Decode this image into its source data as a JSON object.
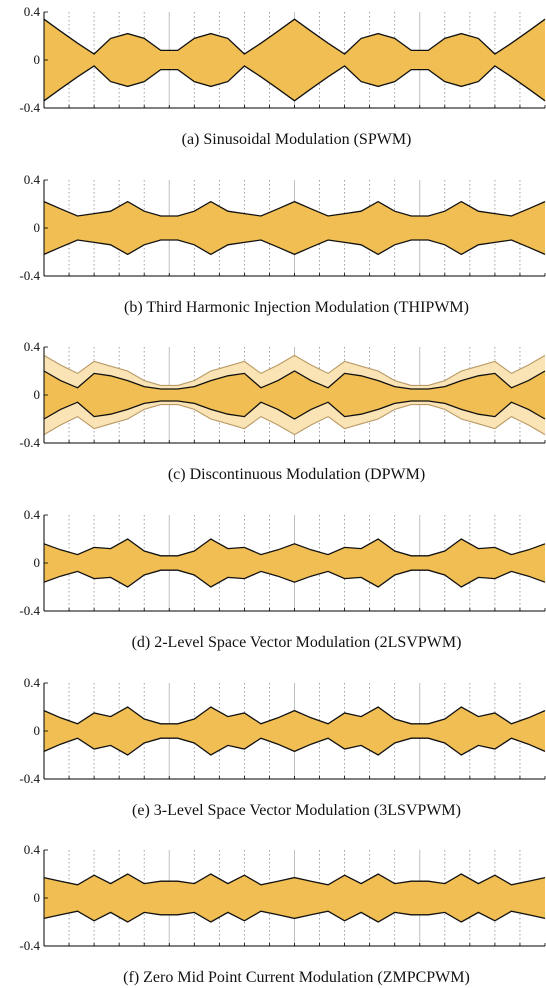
{
  "colors": {
    "fill": "#f0be52",
    "fill_light": "#fae3b4",
    "outline": "#111111",
    "outline_light": "#b99a66",
    "major_grid": "#bfbfbf",
    "minor_grid": "#8c8c8c"
  },
  "chart_data": [
    {
      "type": "area",
      "caption": "(a) Sinusoidal Modulation (SPWM)",
      "ylim": [
        -0.4,
        0.4
      ],
      "yticks": [
        "0.4",
        "0",
        "-0.4"
      ],
      "xlim": [
        0,
        1
      ],
      "grid": true,
      "series": [
        {
          "style": "main",
          "x": [
            0,
            0.033,
            0.067,
            0.1,
            0.133,
            0.167,
            0.2,
            0.233,
            0.267,
            0.3,
            0.333,
            0.367,
            0.4,
            0.433,
            0.467,
            0.5,
            0.533,
            0.567,
            0.6,
            0.633,
            0.667,
            0.7,
            0.733,
            0.767,
            0.8,
            0.833,
            0.867,
            0.9,
            0.933,
            0.967,
            1.0
          ],
          "upper": [
            0.34,
            0.24,
            0.14,
            0.05,
            0.18,
            0.22,
            0.18,
            0.08,
            0.08,
            0.18,
            0.22,
            0.18,
            0.05,
            0.14,
            0.24,
            0.34,
            0.24,
            0.14,
            0.05,
            0.18,
            0.22,
            0.18,
            0.08,
            0.08,
            0.18,
            0.22,
            0.18,
            0.05,
            0.14,
            0.24,
            0.34
          ],
          "lower": [
            -0.34,
            -0.24,
            -0.14,
            -0.05,
            -0.18,
            -0.22,
            -0.18,
            -0.08,
            -0.08,
            -0.18,
            -0.22,
            -0.18,
            -0.05,
            -0.14,
            -0.24,
            -0.34,
            -0.24,
            -0.14,
            -0.05,
            -0.18,
            -0.22,
            -0.18,
            -0.08,
            -0.08,
            -0.18,
            -0.22,
            -0.18,
            -0.05,
            -0.14,
            -0.24,
            -0.34
          ]
        }
      ]
    },
    {
      "type": "area",
      "caption": "(b) Third Harmonic Injection Modulation (THIPWM)",
      "ylim": [
        -0.4,
        0.4
      ],
      "yticks": [
        "0.4",
        "0",
        "-0.4"
      ],
      "xlim": [
        0,
        1
      ],
      "grid": true,
      "series": [
        {
          "style": "main",
          "x": [
            0,
            0.033,
            0.067,
            0.1,
            0.133,
            0.167,
            0.2,
            0.233,
            0.267,
            0.3,
            0.333,
            0.367,
            0.4,
            0.433,
            0.467,
            0.5,
            0.533,
            0.567,
            0.6,
            0.633,
            0.667,
            0.7,
            0.733,
            0.767,
            0.8,
            0.833,
            0.867,
            0.9,
            0.933,
            0.967,
            1.0
          ],
          "upper": [
            0.22,
            0.16,
            0.1,
            0.12,
            0.14,
            0.22,
            0.14,
            0.1,
            0.1,
            0.14,
            0.22,
            0.14,
            0.12,
            0.1,
            0.16,
            0.22,
            0.16,
            0.1,
            0.12,
            0.14,
            0.22,
            0.14,
            0.1,
            0.1,
            0.14,
            0.22,
            0.14,
            0.12,
            0.1,
            0.16,
            0.22
          ],
          "lower": [
            -0.22,
            -0.16,
            -0.1,
            -0.12,
            -0.14,
            -0.22,
            -0.14,
            -0.1,
            -0.1,
            -0.14,
            -0.22,
            -0.14,
            -0.12,
            -0.1,
            -0.16,
            -0.22,
            -0.16,
            -0.1,
            -0.12,
            -0.14,
            -0.22,
            -0.14,
            -0.1,
            -0.1,
            -0.14,
            -0.22,
            -0.14,
            -0.12,
            -0.1,
            -0.16,
            -0.22
          ]
        }
      ]
    },
    {
      "type": "area",
      "caption": "(c) Discontinuous Modulation (DPWM)",
      "ylim": [
        -0.4,
        0.4
      ],
      "yticks": [
        "0.4",
        "0",
        "-0.4"
      ],
      "xlim": [
        0,
        1
      ],
      "grid": true,
      "series": [
        {
          "style": "light",
          "x": [
            0,
            0.033,
            0.067,
            0.1,
            0.133,
            0.167,
            0.2,
            0.233,
            0.267,
            0.3,
            0.333,
            0.367,
            0.4,
            0.433,
            0.467,
            0.5,
            0.533,
            0.567,
            0.6,
            0.633,
            0.667,
            0.7,
            0.733,
            0.767,
            0.8,
            0.833,
            0.867,
            0.9,
            0.933,
            0.967,
            1.0
          ],
          "upper": [
            0.33,
            0.25,
            0.18,
            0.28,
            0.24,
            0.2,
            0.12,
            0.08,
            0.08,
            0.12,
            0.2,
            0.24,
            0.28,
            0.18,
            0.25,
            0.33,
            0.25,
            0.18,
            0.28,
            0.24,
            0.2,
            0.12,
            0.08,
            0.08,
            0.12,
            0.2,
            0.24,
            0.28,
            0.18,
            0.25,
            0.33
          ],
          "lower": [
            -0.33,
            -0.25,
            -0.18,
            -0.28,
            -0.24,
            -0.2,
            -0.12,
            -0.08,
            -0.08,
            -0.12,
            -0.2,
            -0.24,
            -0.28,
            -0.18,
            -0.25,
            -0.33,
            -0.25,
            -0.18,
            -0.28,
            -0.24,
            -0.2,
            -0.12,
            -0.08,
            -0.08,
            -0.12,
            -0.2,
            -0.24,
            -0.28,
            -0.18,
            -0.25,
            -0.33
          ]
        },
        {
          "style": "main",
          "x": [
            0,
            0.033,
            0.067,
            0.1,
            0.133,
            0.167,
            0.2,
            0.233,
            0.267,
            0.3,
            0.333,
            0.367,
            0.4,
            0.433,
            0.467,
            0.5,
            0.533,
            0.567,
            0.6,
            0.633,
            0.667,
            0.7,
            0.733,
            0.767,
            0.8,
            0.833,
            0.867,
            0.9,
            0.933,
            0.967,
            1.0
          ],
          "upper": [
            0.2,
            0.12,
            0.06,
            0.18,
            0.16,
            0.12,
            0.07,
            0.05,
            0.05,
            0.07,
            0.12,
            0.16,
            0.18,
            0.06,
            0.12,
            0.2,
            0.12,
            0.06,
            0.18,
            0.16,
            0.12,
            0.07,
            0.05,
            0.05,
            0.07,
            0.12,
            0.16,
            0.18,
            0.06,
            0.12,
            0.2
          ],
          "lower": [
            -0.2,
            -0.12,
            -0.06,
            -0.18,
            -0.16,
            -0.12,
            -0.07,
            -0.05,
            -0.05,
            -0.07,
            -0.12,
            -0.16,
            -0.18,
            -0.06,
            -0.12,
            -0.2,
            -0.12,
            -0.06,
            -0.18,
            -0.16,
            -0.12,
            -0.07,
            -0.05,
            -0.05,
            -0.07,
            -0.12,
            -0.16,
            -0.18,
            -0.06,
            -0.12,
            -0.2
          ]
        }
      ]
    },
    {
      "type": "area",
      "caption": "(d) 2-Level Space Vector Modulation (2LSVPWM)",
      "ylim": [
        -0.4,
        0.4
      ],
      "yticks": [
        "0.4",
        "0",
        "-0.4"
      ],
      "xlim": [
        0,
        1
      ],
      "grid": true,
      "series": [
        {
          "style": "main",
          "x": [
            0,
            0.033,
            0.067,
            0.1,
            0.133,
            0.167,
            0.2,
            0.233,
            0.267,
            0.3,
            0.333,
            0.367,
            0.4,
            0.433,
            0.467,
            0.5,
            0.533,
            0.567,
            0.6,
            0.633,
            0.667,
            0.7,
            0.733,
            0.767,
            0.8,
            0.833,
            0.867,
            0.9,
            0.933,
            0.967,
            1.0
          ],
          "upper": [
            0.16,
            0.11,
            0.07,
            0.13,
            0.12,
            0.2,
            0.1,
            0.06,
            0.06,
            0.1,
            0.2,
            0.12,
            0.13,
            0.07,
            0.11,
            0.16,
            0.11,
            0.07,
            0.13,
            0.12,
            0.2,
            0.1,
            0.06,
            0.06,
            0.1,
            0.2,
            0.12,
            0.13,
            0.07,
            0.11,
            0.16
          ],
          "lower": [
            -0.16,
            -0.11,
            -0.07,
            -0.13,
            -0.12,
            -0.2,
            -0.1,
            -0.06,
            -0.06,
            -0.1,
            -0.2,
            -0.12,
            -0.13,
            -0.07,
            -0.11,
            -0.16,
            -0.11,
            -0.07,
            -0.13,
            -0.12,
            -0.2,
            -0.1,
            -0.06,
            -0.06,
            -0.1,
            -0.2,
            -0.12,
            -0.13,
            -0.07,
            -0.11,
            -0.16
          ]
        }
      ]
    },
    {
      "type": "area",
      "caption": "(e) 3-Level Space Vector Modulation (3LSVPWM)",
      "ylim": [
        -0.4,
        0.4
      ],
      "yticks": [
        "0.4",
        "0",
        "-0.4"
      ],
      "xlim": [
        0,
        1
      ],
      "grid": true,
      "series": [
        {
          "style": "main",
          "x": [
            0,
            0.033,
            0.067,
            0.1,
            0.133,
            0.167,
            0.2,
            0.233,
            0.267,
            0.3,
            0.333,
            0.367,
            0.4,
            0.433,
            0.467,
            0.5,
            0.533,
            0.567,
            0.6,
            0.633,
            0.667,
            0.7,
            0.733,
            0.767,
            0.8,
            0.833,
            0.867,
            0.9,
            0.933,
            0.967,
            1.0
          ],
          "upper": [
            0.17,
            0.11,
            0.06,
            0.15,
            0.12,
            0.2,
            0.1,
            0.06,
            0.06,
            0.1,
            0.2,
            0.12,
            0.15,
            0.06,
            0.11,
            0.17,
            0.11,
            0.06,
            0.15,
            0.12,
            0.2,
            0.1,
            0.06,
            0.06,
            0.1,
            0.2,
            0.12,
            0.15,
            0.06,
            0.11,
            0.17
          ],
          "lower": [
            -0.17,
            -0.11,
            -0.06,
            -0.15,
            -0.12,
            -0.2,
            -0.1,
            -0.06,
            -0.06,
            -0.1,
            -0.2,
            -0.12,
            -0.15,
            -0.06,
            -0.11,
            -0.17,
            -0.11,
            -0.06,
            -0.15,
            -0.12,
            -0.2,
            -0.1,
            -0.06,
            -0.06,
            -0.1,
            -0.2,
            -0.12,
            -0.15,
            -0.06,
            -0.11,
            -0.17
          ]
        }
      ]
    },
    {
      "type": "area",
      "caption": "(f) Zero Mid Point Current Modulation (ZMPCPWM)",
      "ylim": [
        -0.4,
        0.4
      ],
      "yticks": [
        "0.4",
        "0",
        "-0.4"
      ],
      "xlim": [
        0,
        1
      ],
      "grid": true,
      "series": [
        {
          "style": "main",
          "x": [
            0,
            0.033,
            0.067,
            0.1,
            0.133,
            0.167,
            0.2,
            0.233,
            0.267,
            0.3,
            0.333,
            0.367,
            0.4,
            0.433,
            0.467,
            0.5,
            0.533,
            0.567,
            0.6,
            0.633,
            0.667,
            0.7,
            0.733,
            0.767,
            0.8,
            0.833,
            0.867,
            0.9,
            0.933,
            0.967,
            1.0
          ],
          "upper": [
            0.17,
            0.14,
            0.11,
            0.19,
            0.12,
            0.2,
            0.12,
            0.14,
            0.14,
            0.12,
            0.2,
            0.12,
            0.19,
            0.11,
            0.14,
            0.17,
            0.14,
            0.11,
            0.19,
            0.12,
            0.2,
            0.12,
            0.14,
            0.14,
            0.12,
            0.2,
            0.12,
            0.19,
            0.11,
            0.14,
            0.17
          ],
          "lower": [
            -0.17,
            -0.14,
            -0.11,
            -0.19,
            -0.12,
            -0.2,
            -0.12,
            -0.14,
            -0.14,
            -0.12,
            -0.2,
            -0.12,
            -0.19,
            -0.11,
            -0.14,
            -0.17,
            -0.14,
            -0.11,
            -0.19,
            -0.12,
            -0.2,
            -0.12,
            -0.14,
            -0.14,
            -0.12,
            -0.2,
            -0.12,
            -0.19,
            -0.11,
            -0.14,
            -0.17
          ]
        }
      ]
    }
  ]
}
